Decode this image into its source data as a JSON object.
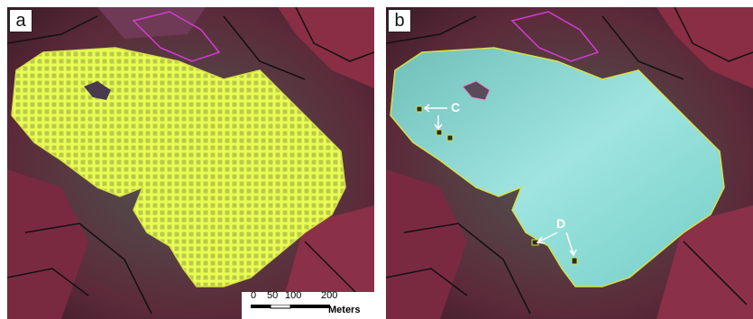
{
  "panels": [
    {
      "label": "a"
    },
    {
      "label": "b",
      "callouts": [
        "C",
        "D"
      ]
    }
  ],
  "scale_bar": {
    "ticks": [
      "0",
      "50",
      "100",
      "200"
    ],
    "units": "Meters"
  },
  "colors": {
    "background_red": "#7a2a3c",
    "cyan_region": "#7fd6d2",
    "grid_yellow": "#e8ff3c",
    "boundary_black": "#111111",
    "boundary_magenta": "#d23cd2",
    "boundary_yellow": "#d6e048"
  }
}
